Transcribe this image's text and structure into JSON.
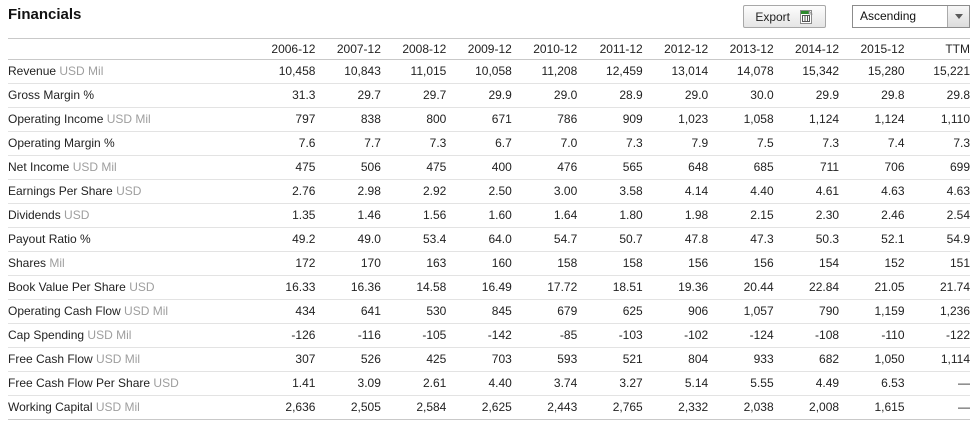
{
  "title": "Financials",
  "controls": {
    "export_label": "Export",
    "export_icon": "spreadsheet-icon",
    "sort_order": "Ascending",
    "sort_arrow_icon": "chevron-down-icon"
  },
  "colors": {
    "icon_green": "#2d8a2d",
    "border_strong": "#c9c9c9",
    "border_light": "#e3e3e3",
    "unit_gray": "#9e9e9e"
  },
  "table": {
    "columns": [
      "2006-12",
      "2007-12",
      "2008-12",
      "2009-12",
      "2010-12",
      "2011-12",
      "2012-12",
      "2013-12",
      "2014-12",
      "2015-12",
      "TTM"
    ],
    "rows": [
      {
        "label": "Revenue",
        "unit": "USD Mil",
        "values": [
          "10,458",
          "10,843",
          "11,015",
          "10,058",
          "11,208",
          "12,459",
          "13,014",
          "14,078",
          "15,342",
          "15,280",
          "15,221"
        ]
      },
      {
        "label": "Gross Margin %",
        "unit": "",
        "values": [
          "31.3",
          "29.7",
          "29.7",
          "29.9",
          "29.0",
          "28.9",
          "29.0",
          "30.0",
          "29.9",
          "29.8",
          "29.8"
        ]
      },
      {
        "label": "Operating Income",
        "unit": "USD Mil",
        "values": [
          "797",
          "838",
          "800",
          "671",
          "786",
          "909",
          "1,023",
          "1,058",
          "1,124",
          "1,124",
          "1,110"
        ]
      },
      {
        "label": "Operating Margin %",
        "unit": "",
        "values": [
          "7.6",
          "7.7",
          "7.3",
          "6.7",
          "7.0",
          "7.3",
          "7.9",
          "7.5",
          "7.3",
          "7.4",
          "7.3"
        ]
      },
      {
        "label": "Net Income",
        "unit": "USD Mil",
        "values": [
          "475",
          "506",
          "475",
          "400",
          "476",
          "565",
          "648",
          "685",
          "711",
          "706",
          "699"
        ]
      },
      {
        "label": "Earnings Per Share",
        "unit": "USD",
        "values": [
          "2.76",
          "2.98",
          "2.92",
          "2.50",
          "3.00",
          "3.58",
          "4.14",
          "4.40",
          "4.61",
          "4.63",
          "4.63"
        ]
      },
      {
        "label": "Dividends",
        "unit": "USD",
        "values": [
          "1.35",
          "1.46",
          "1.56",
          "1.60",
          "1.64",
          "1.80",
          "1.98",
          "2.15",
          "2.30",
          "2.46",
          "2.54"
        ]
      },
      {
        "label": "Payout Ratio %",
        "unit": "",
        "values": [
          "49.2",
          "49.0",
          "53.4",
          "64.0",
          "54.7",
          "50.7",
          "47.8",
          "47.3",
          "50.3",
          "52.1",
          "54.9"
        ]
      },
      {
        "label": "Shares",
        "unit": "Mil",
        "values": [
          "172",
          "170",
          "163",
          "160",
          "158",
          "158",
          "156",
          "156",
          "154",
          "152",
          "151"
        ]
      },
      {
        "label": "Book Value Per Share",
        "unit": "USD",
        "values": [
          "16.33",
          "16.36",
          "14.58",
          "16.49",
          "17.72",
          "18.51",
          "19.36",
          "20.44",
          "22.84",
          "21.05",
          "21.74"
        ]
      },
      {
        "label": "Operating Cash Flow",
        "unit": "USD Mil",
        "values": [
          "434",
          "641",
          "530",
          "845",
          "679",
          "625",
          "906",
          "1,057",
          "790",
          "1,159",
          "1,236"
        ]
      },
      {
        "label": "Cap Spending",
        "unit": "USD Mil",
        "values": [
          "-126",
          "-116",
          "-105",
          "-142",
          "-85",
          "-103",
          "-102",
          "-124",
          "-108",
          "-110",
          "-122"
        ]
      },
      {
        "label": "Free Cash Flow",
        "unit": "USD Mil",
        "values": [
          "307",
          "526",
          "425",
          "703",
          "593",
          "521",
          "804",
          "933",
          "682",
          "1,050",
          "1,114"
        ]
      },
      {
        "label": "Free Cash Flow Per Share",
        "unit": "USD",
        "values": [
          "1.41",
          "3.09",
          "2.61",
          "4.40",
          "3.74",
          "3.27",
          "5.14",
          "5.55",
          "4.49",
          "6.53",
          "—"
        ]
      },
      {
        "label": "Working Capital",
        "unit": "USD Mil",
        "values": [
          "2,636",
          "2,505",
          "2,584",
          "2,625",
          "2,443",
          "2,765",
          "2,332",
          "2,038",
          "2,008",
          "1,615",
          "—"
        ]
      }
    ]
  }
}
